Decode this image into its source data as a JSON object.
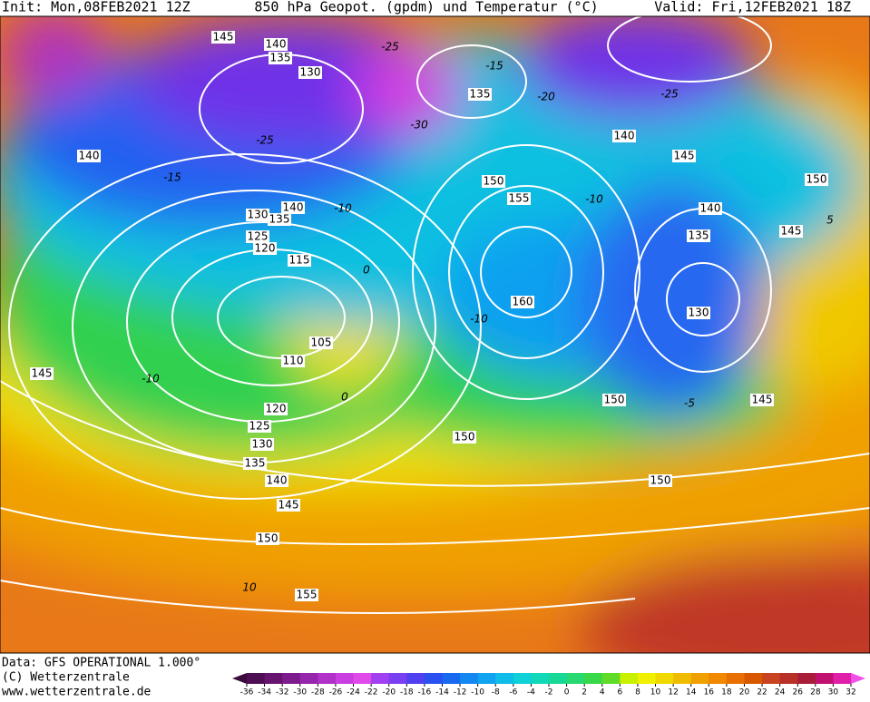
{
  "header": {
    "init": "Init: Mon,08FEB2021 12Z",
    "title": "850 hPa Geopot. (gpdm) und Temperatur (°C)",
    "valid": "Valid: Fri,12FEB2021 18Z"
  },
  "footer": {
    "source": "Data: GFS OPERATIONAL 1.000°",
    "copyright": "(C) Wetterzentrale",
    "url": "www.wetterzentrale.de"
  },
  "colorbar": {
    "labels": [
      -36,
      -34,
      -32,
      -30,
      -28,
      -26,
      -24,
      -22,
      -20,
      -18,
      -16,
      -14,
      -12,
      -10,
      -8,
      -6,
      -4,
      -2,
      0,
      2,
      4,
      6,
      8,
      10,
      12,
      14,
      16,
      18,
      20,
      22,
      24,
      26,
      28,
      30,
      32
    ],
    "colors": [
      "#3a0a3a",
      "#4e0f52",
      "#66146e",
      "#7d1c8c",
      "#9626ac",
      "#b032c8",
      "#c83ee0",
      "#e04ae8",
      "#a040f0",
      "#7840f0",
      "#5040f0",
      "#2a50f0",
      "#1868f0",
      "#1488f0",
      "#10a4f0",
      "#10bce8",
      "#10d0d8",
      "#10d8b8",
      "#18d898",
      "#28d870",
      "#38d848",
      "#60dc28",
      "#c8f000",
      "#f0f000",
      "#f0d800",
      "#f0bc00",
      "#f0a000",
      "#f08800",
      "#e87000",
      "#d85800",
      "#c84420",
      "#b83028",
      "#a81e38",
      "#c01070",
      "#e020a8",
      "#f050e8"
    ]
  },
  "contour_labels": [
    "145",
    "140",
    "135",
    "130",
    "140",
    "135",
    "140",
    "145",
    "150",
    "150",
    "155",
    "140",
    "130",
    "135",
    "125",
    "120",
    "115",
    "140",
    "135",
    "145",
    "130",
    "160",
    "105",
    "110",
    "145",
    "120",
    "150",
    "145",
    "125",
    "150",
    "130",
    "135",
    "140",
    "150",
    "145",
    "150",
    "155"
  ],
  "temperature_labels": [
    "-25",
    "-15",
    "-20",
    "-25",
    "-30",
    "-25",
    "-10",
    "-10",
    "0",
    "-10",
    "0",
    "5",
    "10",
    "-15",
    "-5",
    "-10"
  ]
}
